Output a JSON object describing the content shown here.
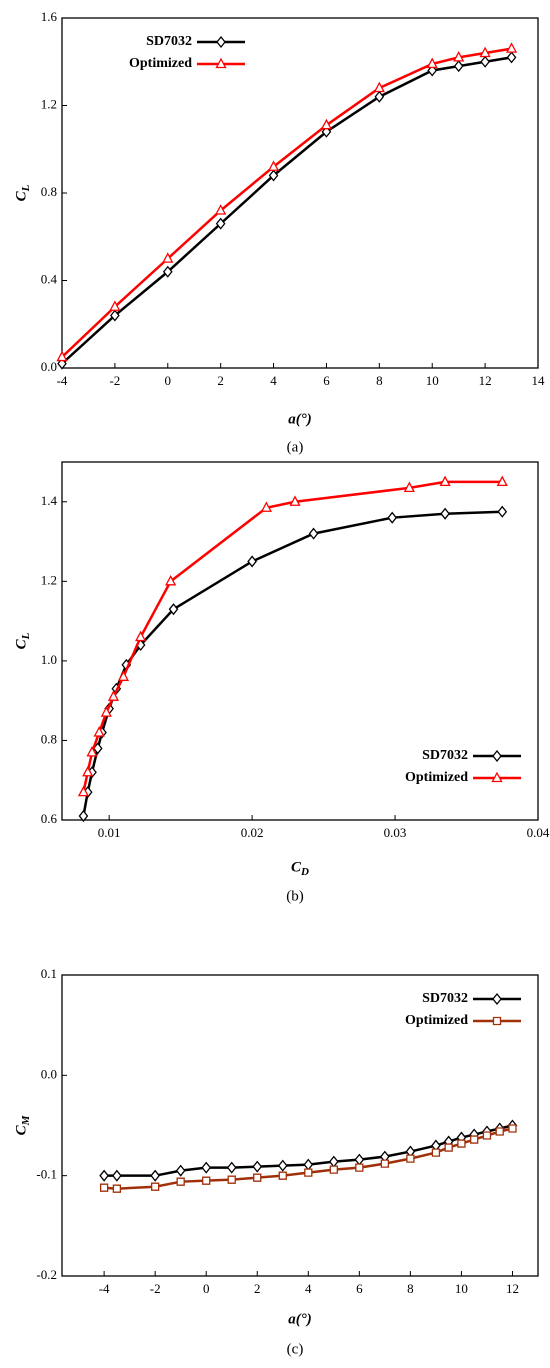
{
  "chart_data": [
    {
      "type": "line",
      "caption": "(a)",
      "x_label": "a(°)",
      "y_label": "CL",
      "legend": "upper left",
      "x": [
        -4,
        -2,
        0,
        2,
        4,
        6,
        8,
        10,
        11,
        12,
        13
      ],
      "series": [
        {
          "name": "SD7032",
          "color": "#000000",
          "marker": "diamond",
          "values": [
            0.02,
            0.24,
            0.44,
            0.66,
            0.88,
            1.08,
            1.24,
            1.36,
            1.38,
            1.4,
            1.42
          ]
        },
        {
          "name": "Optimized",
          "color": "#ff0000",
          "marker": "triangle",
          "values": [
            0.05,
            0.28,
            0.5,
            0.72,
            0.92,
            1.11,
            1.28,
            1.39,
            1.42,
            1.44,
            1.46
          ]
        }
      ],
      "xlim": [
        -4,
        14
      ],
      "xticks": [
        -4,
        -2,
        0,
        2,
        4,
        6,
        8,
        10,
        12,
        14
      ],
      "ylim": [
        0,
        1.6
      ],
      "yticks": [
        {
          "value": 0,
          "label": "0.0"
        },
        0.4,
        0.8,
        1.2,
        1.6
      ]
    },
    {
      "type": "line",
      "caption": "(b)",
      "x_label": "CD",
      "y_label": "CL",
      "legend": "lower right",
      "series": [
        {
          "name": "SD7032",
          "color": "#000000",
          "marker": "diamond",
          "x": [
            0.0082,
            0.0085,
            0.0088,
            0.0092,
            0.0095,
            0.01,
            0.0105,
            0.0112,
            0.0122,
            0.0145,
            0.02,
            0.0243,
            0.0298,
            0.0335,
            0.0375
          ],
          "values": [
            0.61,
            0.67,
            0.72,
            0.78,
            0.82,
            0.88,
            0.93,
            0.99,
            1.04,
            1.13,
            1.25,
            1.32,
            1.36,
            1.37,
            1.375
          ]
        },
        {
          "name": "Optimized",
          "color": "#ff0000",
          "marker": "triangle",
          "x": [
            0.0082,
            0.0085,
            0.0088,
            0.0093,
            0.0098,
            0.0103,
            0.011,
            0.0122,
            0.0143,
            0.021,
            0.023,
            0.031,
            0.0335,
            0.0375
          ],
          "values": [
            0.67,
            0.72,
            0.77,
            0.82,
            0.87,
            0.91,
            0.96,
            1.06,
            1.2,
            1.385,
            1.4,
            1.435,
            1.45,
            1.45
          ]
        }
      ],
      "xlim": [
        0.0067,
        0.04
      ],
      "xticks": [
        0.01,
        0.02,
        0.03,
        0.04
      ],
      "ylim": [
        0.6,
        1.5
      ],
      "yticks": [
        0.6,
        0.8,
        {
          "value": 1,
          "label": "1.0"
        },
        1.2,
        1.4
      ]
    },
    {
      "type": "line",
      "caption": "(c)",
      "x_label": "a(°)",
      "y_label": "CM",
      "legend": "upper right",
      "x": [
        -4,
        -3.5,
        -2,
        -1,
        0,
        1,
        2,
        3,
        4,
        5,
        6,
        7,
        8,
        9,
        9.5,
        10,
        10.5,
        11,
        11.5,
        12
      ],
      "series": [
        {
          "name": "SD7032",
          "color": "#000000",
          "marker": "diamond",
          "values": [
            -0.1,
            -0.1,
            -0.1,
            -0.095,
            -0.092,
            -0.092,
            -0.091,
            -0.09,
            -0.089,
            -0.086,
            -0.084,
            -0.081,
            -0.076,
            -0.07,
            -0.066,
            -0.062,
            -0.059,
            -0.056,
            -0.053,
            -0.05
          ]
        },
        {
          "name": "Optimized",
          "color": "#a0300a",
          "marker": "square",
          "values": [
            -0.112,
            -0.113,
            -0.111,
            -0.106,
            -0.105,
            -0.104,
            -0.102,
            -0.1,
            -0.097,
            -0.094,
            -0.092,
            -0.088,
            -0.083,
            -0.077,
            -0.072,
            -0.068,
            -0.064,
            -0.06,
            -0.056,
            -0.053
          ]
        }
      ],
      "xlim": [
        -5.65,
        13
      ],
      "xticks": [
        -4,
        -2,
        0,
        2,
        4,
        6,
        8,
        10,
        12
      ],
      "ylim": [
        -0.2,
        0.1
      ],
      "yticks": [
        -0.2,
        -0.1,
        {
          "value": 0,
          "label": "0.0"
        },
        0.1
      ]
    }
  ]
}
